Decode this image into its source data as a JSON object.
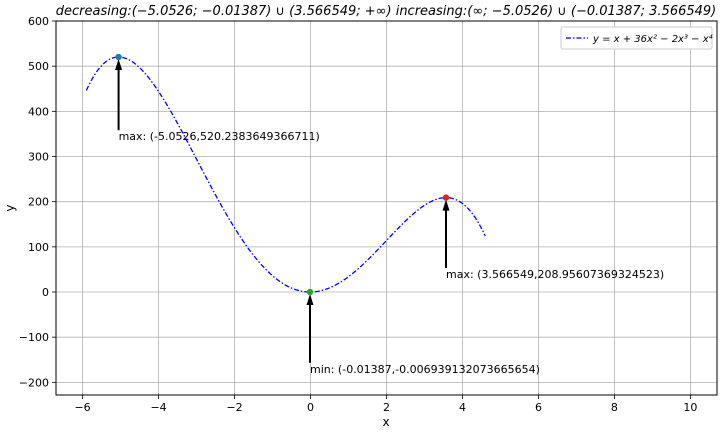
{
  "chart_data": {
    "type": "line",
    "title": "decreasing:(−5.0526; −0.01387) ∪ (3.566549; +∞)  increasing:(∞; −5.0526) ∪ (−0.01387; 3.566549)",
    "xlabel": "x",
    "ylabel": "y",
    "xlim": [
      -6.7,
      10.7
    ],
    "ylim": [
      -228,
      600
    ],
    "xticks": [
      -6,
      -4,
      -2,
      0,
      2,
      4,
      6,
      8,
      10
    ],
    "yticks": [
      -200,
      -100,
      0,
      100,
      200,
      300,
      400,
      500,
      600
    ],
    "xtick_labels": [
      "−6",
      "−4",
      "−2",
      "0",
      "2",
      "4",
      "6",
      "8",
      "10"
    ],
    "ytick_labels": [
      "−200",
      "−100",
      "0",
      "100",
      "200",
      "300",
      "400",
      "500",
      "600"
    ],
    "grid": true,
    "legend_position": "top-right",
    "series": [
      {
        "name": "y = x + 36x² − 2x³ − x⁴",
        "color": "#0000ff",
        "style": "dash-dot",
        "x_range": [
          -5.9,
          4.6
        ]
      }
    ],
    "extrema": [
      {
        "kind": "max",
        "x": -5.0526,
        "y": 520.2383649366711,
        "label": "max: (-5.0526,520.2383649366711)",
        "color": "#1f77b4",
        "label_y": 345
      },
      {
        "kind": "min",
        "x": -0.01387,
        "y": -0.006939132073665654,
        "label": "min: (-0.01387,-0.006939132073665654)",
        "color": "#2ca02c",
        "label_y": -170
      },
      {
        "kind": "max",
        "x": 3.566549,
        "y": 208.95607369324523,
        "label": "max: (3.566549,208.95607369324523)",
        "color": "#d62728",
        "label_y": 40
      }
    ]
  }
}
